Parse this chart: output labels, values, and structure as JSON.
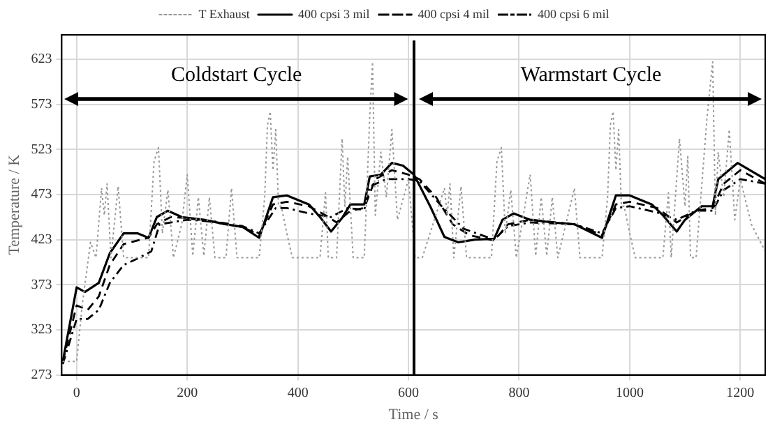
{
  "chart_data": {
    "type": "line",
    "xlabel": "Time / s",
    "ylabel": "Temperature / K",
    "xlim": [
      -27,
      1245
    ],
    "ylim": [
      273,
      650
    ],
    "xticks": [
      0,
      200,
      400,
      600,
      800,
      1000,
      1200
    ],
    "yticks": [
      273,
      323,
      373,
      423,
      473,
      523,
      573,
      623
    ],
    "grid": true,
    "legend": "top",
    "marker": "none",
    "ref_lines": [
      {
        "axis": "x",
        "value": 610,
        "color": "#000000"
      }
    ],
    "annotations": [
      "Coldstart Cycle",
      "Warmstart Cycle"
    ],
    "series": [
      {
        "name": "T Exhaust",
        "color": "#999999",
        "line_style": "dotted",
        "x": [
          -25,
          0,
          10,
          25,
          35,
          45,
          50,
          55,
          62,
          75,
          85,
          130,
          140,
          148,
          155,
          165,
          175,
          190,
          200,
          210,
          220,
          230,
          240,
          250,
          270,
          280,
          290,
          330,
          340,
          345,
          350,
          355,
          360,
          365,
          370,
          380,
          390,
          440,
          450,
          455,
          470,
          480,
          485,
          490,
          500,
          520,
          530,
          535,
          540,
          550,
          560,
          570,
          580,
          600,
          612,
          625,
          665,
          670,
          675,
          682,
          695,
          705,
          750,
          760,
          768,
          775,
          785,
          795,
          820,
          830,
          840,
          850,
          860,
          870,
          900,
          910,
          950,
          960,
          965,
          970,
          975,
          980,
          985,
          990,
          1000,
          1010,
          1060,
          1070,
          1075,
          1090,
          1100,
          1105,
          1110,
          1120,
          1140,
          1150,
          1155,
          1160,
          1170,
          1180,
          1190,
          1200,
          1220,
          1245
        ],
        "values": [
          288,
          288,
          350,
          420,
          403,
          480,
          450,
          485,
          403,
          482,
          403,
          403,
          510,
          525,
          430,
          478,
          403,
          440,
          495,
          405,
          470,
          405,
          470,
          403,
          403,
          480,
          403,
          403,
          470,
          550,
          565,
          500,
          545,
          460,
          460,
          430,
          403,
          403,
          475,
          403,
          403,
          535,
          460,
          515,
          403,
          403,
          560,
          620,
          450,
          520,
          470,
          545,
          445,
          490,
          403,
          403,
          480,
          450,
          485,
          403,
          482,
          403,
          403,
          510,
          525,
          430,
          478,
          403,
          495,
          405,
          470,
          405,
          470,
          403,
          480,
          403,
          403,
          470,
          550,
          565,
          500,
          545,
          460,
          460,
          430,
          403,
          403,
          475,
          403,
          535,
          460,
          515,
          403,
          403,
          560,
          620,
          450,
          520,
          470,
          545,
          445,
          490,
          440,
          410
        ]
      },
      {
        "name": "400 cpsi 3 mil",
        "color": "#000000",
        "line_style": "solid",
        "x": [
          -25,
          0,
          15,
          40,
          60,
          85,
          110,
          130,
          145,
          165,
          190,
          230,
          270,
          300,
          330,
          355,
          380,
          420,
          440,
          460,
          480,
          495,
          520,
          530,
          550,
          570,
          590,
          610,
          640,
          665,
          690,
          720,
          755,
          770,
          790,
          820,
          860,
          900,
          950,
          975,
          1000,
          1040,
          1060,
          1085,
          1100,
          1130,
          1150,
          1160,
          1195,
          1245
        ],
        "values": [
          288,
          370,
          365,
          375,
          408,
          430,
          430,
          425,
          448,
          455,
          448,
          445,
          440,
          437,
          425,
          470,
          472,
          462,
          448,
          432,
          447,
          462,
          462,
          493,
          495,
          508,
          505,
          495,
          459,
          426,
          420,
          423,
          424,
          445,
          452,
          445,
          442,
          440,
          425,
          472,
          472,
          462,
          450,
          432,
          445,
          460,
          460,
          490,
          508,
          490
        ]
      },
      {
        "name": "400 cpsi 4 mil",
        "color": "#000000",
        "line_style": "dashed",
        "x": [
          -25,
          0,
          20,
          40,
          60,
          85,
          110,
          130,
          145,
          170,
          200,
          250,
          300,
          330,
          355,
          380,
          420,
          450,
          470,
          495,
          520,
          540,
          570,
          600,
          620,
          650,
          680,
          710,
          755,
          780,
          820,
          900,
          950,
          975,
          1000,
          1050,
          1085,
          1120,
          1150,
          1170,
          1200,
          1245
        ],
        "values": [
          288,
          350,
          345,
          360,
          395,
          418,
          422,
          425,
          440,
          448,
          447,
          442,
          437,
          428,
          462,
          465,
          460,
          450,
          442,
          455,
          458,
          490,
          500,
          495,
          490,
          470,
          440,
          428,
          422,
          440,
          445,
          440,
          428,
          462,
          465,
          458,
          442,
          455,
          458,
          485,
          500,
          485
        ]
      },
      {
        "name": "400 cpsi 6 mil",
        "color": "#000000",
        "line_style": "dashdot",
        "x": [
          -25,
          0,
          20,
          40,
          60,
          85,
          110,
          135,
          150,
          180,
          200,
          250,
          300,
          330,
          360,
          380,
          420,
          460,
          490,
          520,
          530,
          560,
          600,
          620,
          660,
          700,
          755,
          780,
          820,
          900,
          950,
          975,
          1000,
          1050,
          1085,
          1120,
          1150,
          1170,
          1200,
          1245
        ],
        "values": [
          285,
          335,
          335,
          345,
          375,
          395,
          402,
          410,
          440,
          443,
          445,
          443,
          438,
          430,
          458,
          458,
          452,
          448,
          458,
          456,
          482,
          490,
          490,
          488,
          460,
          435,
          423,
          438,
          442,
          440,
          430,
          458,
          460,
          453,
          445,
          455,
          455,
          478,
          490,
          485
        ]
      }
    ]
  }
}
